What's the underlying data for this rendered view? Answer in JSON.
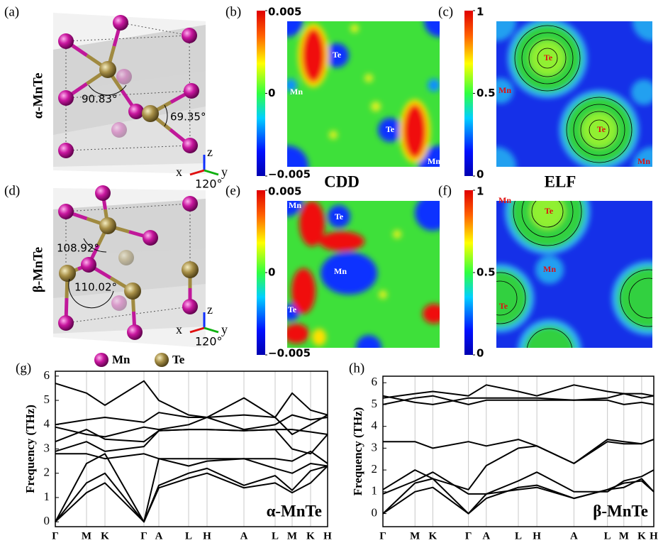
{
  "figure": {
    "panel_labels": [
      "(a)",
      "(b)",
      "(c)",
      "(d)",
      "(e)",
      "(f)"
    ],
    "structures": [
      {
        "name": "α-MnTe",
        "angles": [
          "90.83°",
          "69.35°"
        ]
      },
      {
        "name": "β-MnTe",
        "angles": [
          "108.92°",
          "110.02°"
        ]
      }
    ],
    "axis_labels": [
      "x",
      "y",
      "z",
      "120°"
    ],
    "legend": [
      "Mn",
      "Te"
    ],
    "map_titles": [
      "CDD",
      "ELF"
    ],
    "maps": [
      {
        "atoms": [
          "Te",
          "Mn",
          "Te",
          "Mn"
        ]
      },
      {
        "atoms": [
          "Te",
          "Mn",
          "Te",
          "Mn"
        ]
      },
      {
        "atoms": [
          "Mn",
          "Te",
          "Mn",
          "Te"
        ]
      },
      {
        "atoms": [
          "Mn",
          "Te",
          "Mn",
          "Te"
        ]
      }
    ],
    "colorbars": [
      {
        "ylim": [
          -0.005,
          0.005
        ],
        "yticks": [
          {
            "value": -0.005,
            "label": "−0.005"
          },
          0,
          0.005
        ]
      },
      {
        "ylim": [
          0,
          1
        ],
        "yticks": [
          0,
          0.5,
          1
        ]
      }
    ]
  },
  "chart_data": [
    {
      "type": "line",
      "panel_label": "(g)",
      "annotation": "α-MnTe",
      "y_label": "Frequency (THz)",
      "color": "#000000",
      "grid": true,
      "x": [
        0,
        0.44,
        0.7,
        1.25,
        1.46,
        1.88,
        2.14,
        2.66,
        3.1,
        3.34,
        3.6,
        3.84
      ],
      "xlim": [
        0,
        3.84
      ],
      "xticks": [
        {
          "value": 0,
          "label": "Γ"
        },
        {
          "value": 0.44,
          "label": "M"
        },
        {
          "value": 0.7,
          "label": "K"
        },
        {
          "value": 1.25,
          "label": "Γ"
        },
        {
          "value": 1.46,
          "label": "A"
        },
        {
          "value": 1.88,
          "label": "L"
        },
        {
          "value": 2.14,
          "label": "H"
        },
        {
          "value": 2.66,
          "label": "A"
        },
        {
          "value": 3.1,
          "label": "L"
        },
        {
          "value": 3.34,
          "label": "M"
        },
        {
          "value": 3.6,
          "label": "K"
        },
        {
          "value": 3.84,
          "label": "H"
        }
      ],
      "ylim": [
        -0.2,
        6.2
      ],
      "yticks": [
        0,
        1,
        2,
        3,
        4,
        5,
        6
      ],
      "series": [
        {
          "values": [
            0,
            1.2,
            1.6,
            0,
            1.4,
            1.8,
            2.0,
            1.4,
            1.6,
            1.2,
            1.6,
            2.3
          ]
        },
        {
          "values": [
            0,
            1.6,
            2.0,
            0,
            1.5,
            2.0,
            2.2,
            1.5,
            1.9,
            1.3,
            2.1,
            2.3
          ]
        },
        {
          "values": [
            0,
            2.4,
            2.8,
            0,
            2.6,
            2.3,
            2.5,
            2.6,
            2.2,
            2.0,
            2.4,
            2.3
          ]
        },
        {
          "values": [
            2.8,
            2.8,
            2.6,
            2.8,
            2.6,
            2.6,
            2.6,
            2.6,
            2.6,
            2.5,
            2.9,
            2.4
          ]
        },
        {
          "values": [
            2.9,
            3.3,
            2.9,
            3.1,
            3.75,
            3.8,
            3.8,
            3.75,
            3.8,
            3.0,
            2.8,
            3.6
          ]
        },
        {
          "values": [
            3.3,
            3.8,
            3.4,
            3.3,
            3.75,
            3.8,
            3.8,
            3.75,
            3.8,
            3.8,
            3.7,
            3.6
          ]
        },
        {
          "values": [
            3.9,
            3.6,
            3.5,
            3.9,
            3.8,
            4.0,
            4.3,
            3.8,
            4.0,
            4.4,
            4.2,
            4.3
          ]
        },
        {
          "values": [
            4.0,
            4.2,
            4.3,
            4.1,
            4.5,
            4.3,
            4.3,
            4.4,
            4.3,
            3.6,
            4.0,
            4.4
          ]
        },
        {
          "values": [
            5.7,
            5.3,
            4.8,
            5.8,
            5.0,
            4.4,
            4.3,
            5.1,
            4.3,
            5.3,
            4.6,
            4.4
          ]
        }
      ]
    },
    {
      "type": "line",
      "panel_label": "(h)",
      "annotation": "β-MnTe",
      "y_label": "Frequency (THz)",
      "color": "#000000",
      "grid": true,
      "x": [
        0,
        0.45,
        0.7,
        1.2,
        1.45,
        1.9,
        2.16,
        2.68,
        3.15,
        3.38,
        3.63,
        3.8
      ],
      "xlim": [
        0,
        3.8
      ],
      "xticks": [
        {
          "value": 0,
          "label": "Γ"
        },
        {
          "value": 0.45,
          "label": "M"
        },
        {
          "value": 0.7,
          "label": "K"
        },
        {
          "value": 1.2,
          "label": "Γ"
        },
        {
          "value": 1.45,
          "label": "A"
        },
        {
          "value": 1.9,
          "label": "L"
        },
        {
          "value": 2.16,
          "label": "H"
        },
        {
          "value": 2.68,
          "label": "A"
        },
        {
          "value": 3.15,
          "label": "L"
        },
        {
          "value": 3.38,
          "label": "M"
        },
        {
          "value": 3.63,
          "label": "K"
        },
        {
          "value": 3.8,
          "label": "H"
        }
      ],
      "ylim": [
        -0.6,
        6.3
      ],
      "yticks": [
        0,
        1,
        2,
        3,
        4,
        5,
        6
      ],
      "series": [
        {
          "values": [
            0,
            1.0,
            1.2,
            0,
            0.9,
            1.1,
            1.2,
            0.7,
            1.1,
            1.4,
            1.5,
            1.0
          ]
        },
        {
          "values": [
            0,
            1.4,
            1.6,
            0,
            0.7,
            1.2,
            1.3,
            0.7,
            1.1,
            1.2,
            1.6,
            1.0
          ]
        },
        {
          "values": [
            0.9,
            1.5,
            1.9,
            0.9,
            0.9,
            1.5,
            1.9,
            1.0,
            1.0,
            1.5,
            1.7,
            2.0
          ]
        },
        {
          "values": [
            1.1,
            2.0,
            1.6,
            1.1,
            2.2,
            3.0,
            3.1,
            2.3,
            3.3,
            3.2,
            3.2,
            3.4
          ]
        },
        {
          "values": [
            3.3,
            3.3,
            3.0,
            3.3,
            3.1,
            3.4,
            3.1,
            2.3,
            3.4,
            3.3,
            3.2,
            3.4
          ]
        },
        {
          "values": [
            5.0,
            5.3,
            5.4,
            5.0,
            5.2,
            5.2,
            5.2,
            5.2,
            5.2,
            5.0,
            5.1,
            5.0
          ]
        },
        {
          "values": [
            5.3,
            5.5,
            5.6,
            5.4,
            5.9,
            5.6,
            5.4,
            5.9,
            5.6,
            5.5,
            5.5,
            5.4
          ]
        },
        {
          "values": [
            5.4,
            5.1,
            5.0,
            5.3,
            5.3,
            5.3,
            5.3,
            5.2,
            5.3,
            5.5,
            5.3,
            5.4
          ]
        }
      ]
    }
  ]
}
